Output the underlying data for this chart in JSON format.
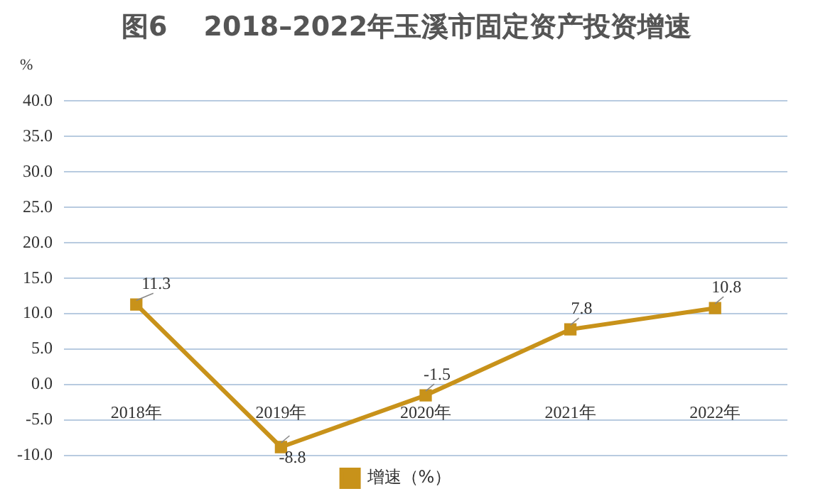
{
  "chart_data": {
    "type": "line",
    "title": "图6　 2018–2022年玉溪市固定资产投资增速",
    "ylabel": "%",
    "categories": [
      "2018年",
      "2019年",
      "2020年",
      "2021年",
      "2022年"
    ],
    "series": [
      {
        "name": "增速（%）",
        "color": "#c8921a",
        "values": [
          11.3,
          -8.8,
          -1.5,
          7.8,
          10.8
        ]
      }
    ],
    "ylim": [
      -10,
      40
    ],
    "yticks": [
      {
        "value": -10,
        "label": "-10.0"
      },
      {
        "value": -5,
        "label": "-5.0"
      },
      {
        "value": 0,
        "label": "0.0"
      },
      {
        "value": 5,
        "label": "5.0"
      },
      {
        "value": 10,
        "label": "10.0"
      },
      {
        "value": 15,
        "label": "15.0"
      },
      {
        "value": 20,
        "label": "20.0"
      },
      {
        "value": 25,
        "label": "25.0"
      },
      {
        "value": 30,
        "label": "30.0"
      },
      {
        "value": 35,
        "label": "35.0"
      },
      {
        "value": 40,
        "label": "40.0"
      }
    ],
    "grid": "y",
    "legend": "bottom",
    "marker": "square",
    "line_style": "solid",
    "data_labels": true
  }
}
